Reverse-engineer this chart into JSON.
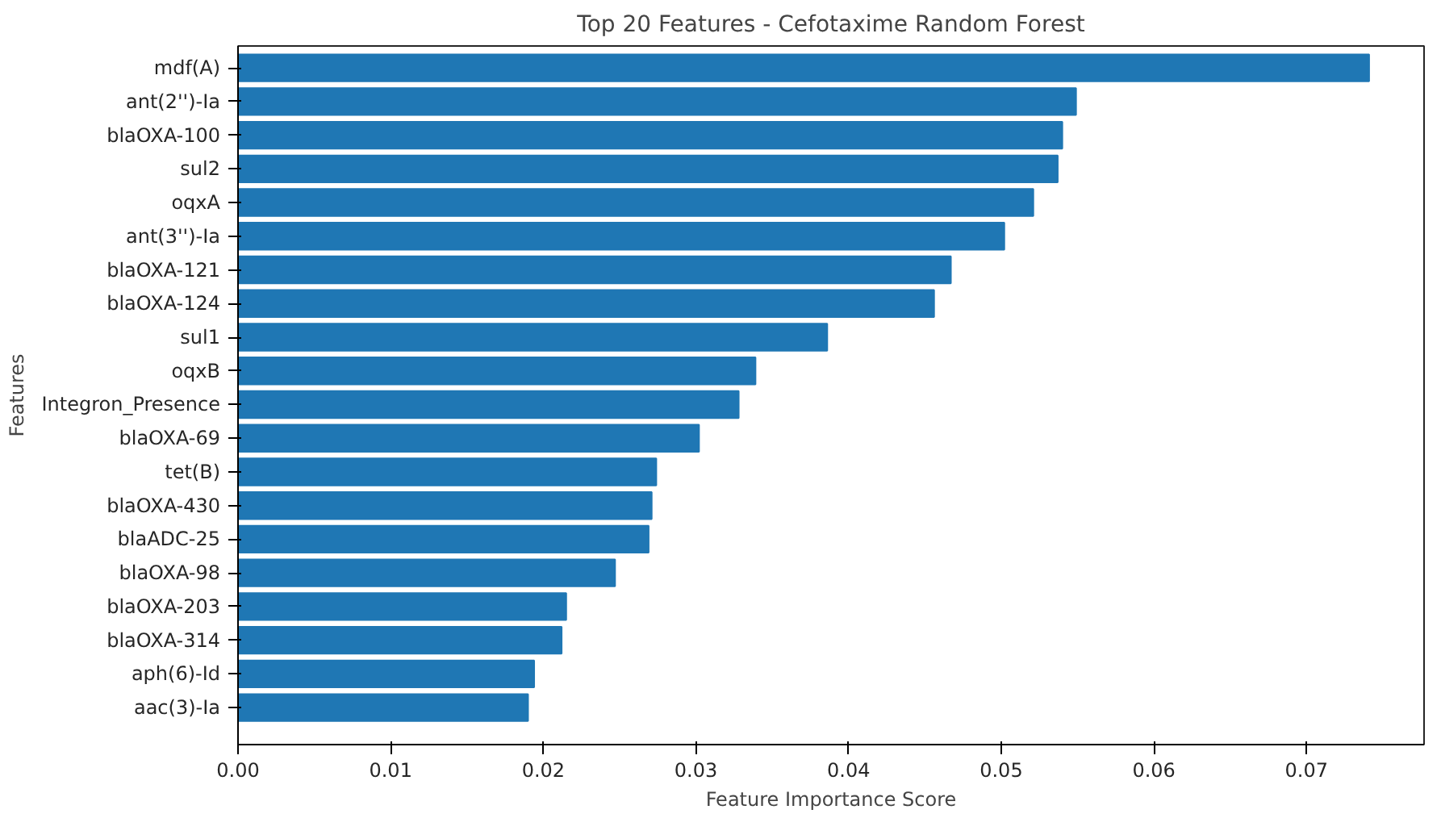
{
  "chart_data": {
    "type": "bar",
    "orientation": "horizontal",
    "title": "Top 20 Features - Cefotaxime Random Forest",
    "xlabel": "Feature Importance Score",
    "ylabel": "Features",
    "categories": [
      "mdf(A)",
      "ant(2'')-Ia",
      "blaOXA-100",
      "sul2",
      "oqxA",
      "ant(3'')-Ia",
      "blaOXA-121",
      "blaOXA-124",
      "sul1",
      "oqxB",
      "Integron_Presence",
      "blaOXA-69",
      "tet(B)",
      "blaOXA-430",
      "blaADC-25",
      "blaOXA-98",
      "blaOXA-203",
      "blaOXA-314",
      "aph(6)-Id",
      "aac(3)-Ia"
    ],
    "values": [
      0.0741,
      0.0549,
      0.054,
      0.0537,
      0.0521,
      0.0502,
      0.0467,
      0.0456,
      0.0386,
      0.0339,
      0.0328,
      0.0302,
      0.0274,
      0.0271,
      0.0269,
      0.0247,
      0.0215,
      0.0212,
      0.0194,
      0.019
    ],
    "color": "#1f77b4",
    "xlim": [
      0,
      0.0777
    ],
    "xticks": [
      {
        "value": 0,
        "label": "0.00"
      },
      0.01,
      0.02,
      0.03,
      0.04,
      0.05,
      0.06,
      0.07
    ],
    "grid": false
  }
}
